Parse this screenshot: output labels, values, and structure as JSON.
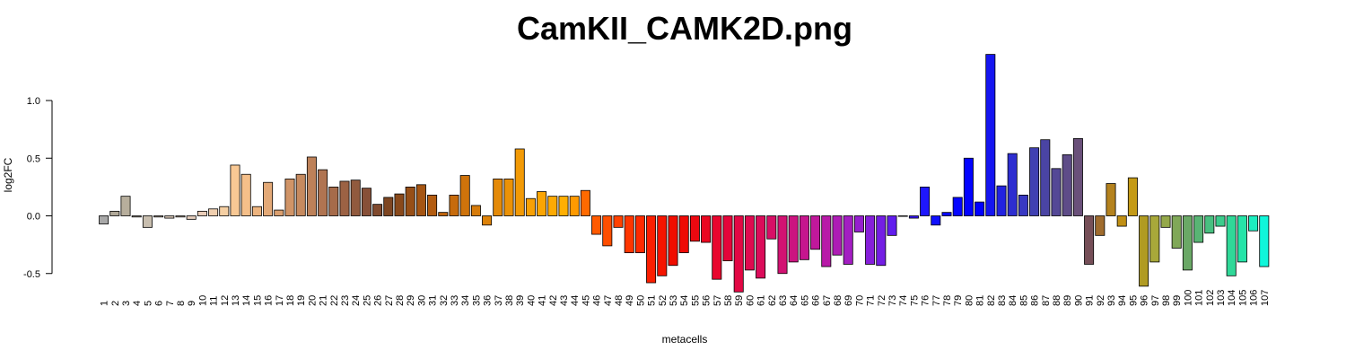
{
  "chart_data": {
    "type": "bar",
    "title": "CamKII_CAMK2D.png",
    "xlabel": "metacells",
    "ylabel": "log2FC",
    "ylim": [
      -0.55,
      1.4
    ],
    "yticks": [
      -0.5,
      0.0,
      0.5,
      1.0
    ],
    "ytick_labels": [
      "-0.5",
      "0.0",
      "0.5",
      "1.0"
    ],
    "grid": false,
    "categories": [
      "1",
      "2",
      "3",
      "4",
      "5",
      "6",
      "7",
      "8",
      "9",
      "10",
      "11",
      "12",
      "13",
      "14",
      "15",
      "16",
      "17",
      "18",
      "19",
      "20",
      "21",
      "22",
      "23",
      "24",
      "25",
      "26",
      "27",
      "28",
      "29",
      "30",
      "31",
      "32",
      "33",
      "34",
      "35",
      "36",
      "37",
      "38",
      "39",
      "40",
      "41",
      "42",
      "43",
      "44",
      "45",
      "46",
      "47",
      "48",
      "49",
      "50",
      "51",
      "52",
      "53",
      "54",
      "55",
      "56",
      "57",
      "58",
      "59",
      "60",
      "61",
      "62",
      "63",
      "64",
      "65",
      "66",
      "67",
      "68",
      "69",
      "70",
      "71",
      "72",
      "73",
      "74",
      "75",
      "76",
      "77",
      "78",
      "79",
      "80",
      "81",
      "82",
      "83",
      "84",
      "85",
      "86",
      "87",
      "88",
      "89",
      "90",
      "91",
      "92",
      "93",
      "94",
      "95",
      "96",
      "97",
      "98",
      "99",
      "100",
      "101",
      "102",
      "103",
      "104",
      "105",
      "106",
      "107"
    ],
    "values": [
      -0.07,
      0.04,
      0.17,
      -0.01,
      -0.1,
      -0.01,
      -0.02,
      -0.01,
      -0.03,
      0.04,
      0.06,
      0.08,
      0.44,
      0.36,
      0.08,
      0.29,
      0.05,
      0.32,
      0.36,
      0.51,
      0.4,
      0.25,
      0.3,
      0.31,
      0.24,
      0.1,
      0.16,
      0.19,
      0.25,
      0.27,
      0.18,
      0.03,
      0.18,
      0.35,
      0.09,
      -0.08,
      0.32,
      0.32,
      0.58,
      0.15,
      0.21,
      0.17,
      0.17,
      0.17,
      0.22,
      -0.16,
      -0.26,
      -0.1,
      -0.32,
      -0.32,
      -0.58,
      -0.52,
      -0.43,
      -0.32,
      -0.22,
      -0.23,
      -0.55,
      -0.39,
      -0.66,
      -0.47,
      -0.54,
      -0.2,
      -0.5,
      -0.4,
      -0.38,
      -0.29,
      -0.44,
      -0.34,
      -0.42,
      -0.14,
      -0.42,
      -0.43,
      -0.17,
      0.0,
      -0.02,
      0.25,
      -0.08,
      0.03,
      0.16,
      0.5,
      0.12,
      1.4,
      0.26,
      0.54,
      0.18,
      0.59,
      0.66,
      0.41,
      0.53,
      0.67,
      -0.42,
      -0.17,
      0.28,
      -0.09,
      0.33,
      -0.61,
      -0.4,
      -0.1,
      -0.28,
      -0.47,
      -0.23,
      -0.15,
      -0.09,
      -0.52,
      -0.4,
      -0.13,
      -0.44
    ],
    "colors": [
      "#A8A8A8",
      "#B0A898",
      "#B7AE9C",
      "#C0B8AA",
      "#C8BEAF",
      "#D0C2B2",
      "#D6C6B6",
      "#DCC9B8",
      "#E3CCBB",
      "#EACDB8",
      "#F0CFAF",
      "#F5CFA3",
      "#F8C894",
      "#F5BF89",
      "#EDB47F",
      "#E3A977",
      "#DA9F6F",
      "#D09467",
      "#C68A5F",
      "#BD8159",
      "#B07451",
      "#A66B4A",
      "#9C6244",
      "#915A3E",
      "#875038",
      "#804A2E",
      "#7E4622",
      "#89491B",
      "#974F17",
      "#A55513",
      "#B35C10",
      "#BF640E",
      "#C76B0C",
      "#CF730B",
      "#D67B0A",
      "#DD8209",
      "#E48A08",
      "#EB9207",
      "#F29A06",
      "#F7A005",
      "#FBA504",
      "#FDAA03",
      "#FFAF02",
      "#FF9A00",
      "#FF6A00",
      "#FF5A00",
      "#FF4E00",
      "#FF4200",
      "#FF3600",
      "#FF2A00",
      "#FB1E00",
      "#F51500",
      "#F00D00",
      "#EE0A05",
      "#EC0810",
      "#EA0620",
      "#E8062E",
      "#E4063A",
      "#E20844",
      "#DF0A50",
      "#DB0C5A",
      "#D70F66",
      "#D21272",
      "#CC1480",
      "#C6168E",
      "#C0189B",
      "#B81AA8",
      "#AE1CB5",
      "#A31EC2",
      "#961FCE",
      "#861FDA",
      "#741EE4",
      "#611DED",
      "#4C1BF4",
      "#3519F9",
      "#1F17FC",
      "#1010FE",
      "#0A0AFE",
      "#0606FF",
      "#0303FF",
      "#0000FF",
      "#1515F0",
      "#2222E0",
      "#2E2ED0",
      "#3838C2",
      "#4040B2",
      "#4A44A4",
      "#544896",
      "#5E4C88",
      "#6A507A",
      "#764F58",
      "#A06C2E",
      "#B4821E",
      "#C08F14",
      "#C49A16",
      "#B09B22",
      "#A8A83A",
      "#94A84A",
      "#80A858",
      "#6AA866",
      "#58B474",
      "#48C080",
      "#3CCC8C",
      "#30D898",
      "#26E4A8",
      "#1CEEC0",
      "#10F6DA",
      "#00FFFF"
    ]
  }
}
